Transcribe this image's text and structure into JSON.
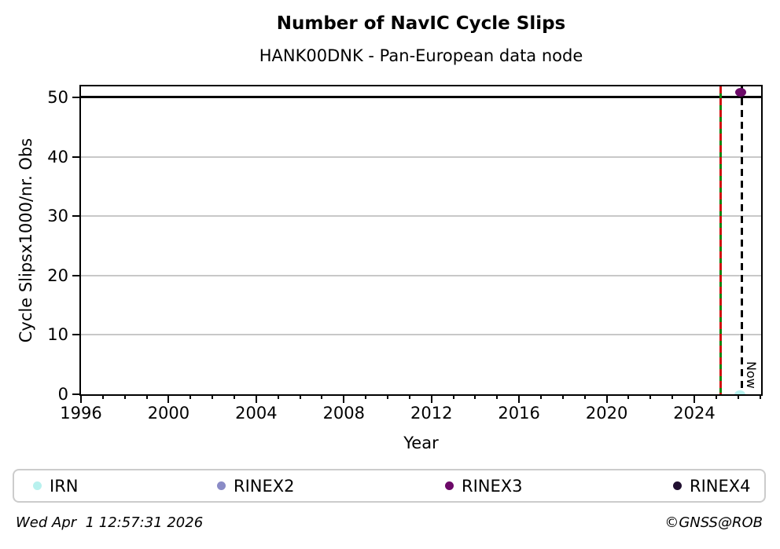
{
  "header": {
    "title": "Number of NavIC Cycle Slips",
    "subtitle": "HANK00DNK - Pan-European data node"
  },
  "chart_data": {
    "type": "scatter",
    "title": "Number of NavIC Cycle Slips",
    "subtitle": "HANK00DNK - Pan-European data node",
    "xlabel": "Year",
    "ylabel": "Cycle Slipsx1000/nr. Obs",
    "xlim": [
      1996,
      2027.05
    ],
    "ylim": [
      0,
      51.85
    ],
    "x_major_ticks": [
      1996,
      2000,
      2004,
      2008,
      2012,
      2016,
      2020,
      2024
    ],
    "x_minor_tick_step": 1,
    "y_ticks": [
      0,
      10,
      20,
      30,
      40,
      50
    ],
    "grid": {
      "y_values": [
        10,
        20,
        30,
        40
      ],
      "color": "#c8c8c8"
    },
    "hlines": [
      {
        "y": 50,
        "color": "#000000",
        "style": "solid",
        "name": "cap-line"
      }
    ],
    "vlines": [
      {
        "x": 2025.2,
        "color": "#0a870a",
        "style": "solid",
        "name": "data-start-green"
      },
      {
        "x": 2025.2,
        "color": "#d01010",
        "style": "dashed",
        "name": "data-start-red-overlay"
      },
      {
        "x": 2026.17,
        "color": "#000000",
        "style": "dashed",
        "name": "now",
        "label": "Now"
      }
    ],
    "now_label": "Now",
    "series": [
      {
        "name": "IRN",
        "color": "#b8f1ee",
        "points": [
          {
            "x": 2026.08,
            "y": 0
          }
        ]
      },
      {
        "name": "RINEX2",
        "color": "#8a8bc6",
        "points": []
      },
      {
        "name": "RINEX3",
        "color": "#6c0968",
        "points": [
          {
            "x": 2026.1,
            "y": 50.8
          }
        ]
      },
      {
        "name": "RINEX4",
        "color": "#211031",
        "points": []
      }
    ],
    "legend_position": "bottom",
    "grid_on": true
  },
  "legend": {
    "items": [
      {
        "label": "IRN",
        "color": "#b8f1ee"
      },
      {
        "label": "RINEX2",
        "color": "#8a8bc6"
      },
      {
        "label": "RINEX3",
        "color": "#6c0968"
      },
      {
        "label": "RINEX4",
        "color": "#211031"
      }
    ]
  },
  "footer": {
    "timestamp": "Wed Apr  1 12:57:31 2026",
    "credit": "©GNSS@ROB"
  }
}
